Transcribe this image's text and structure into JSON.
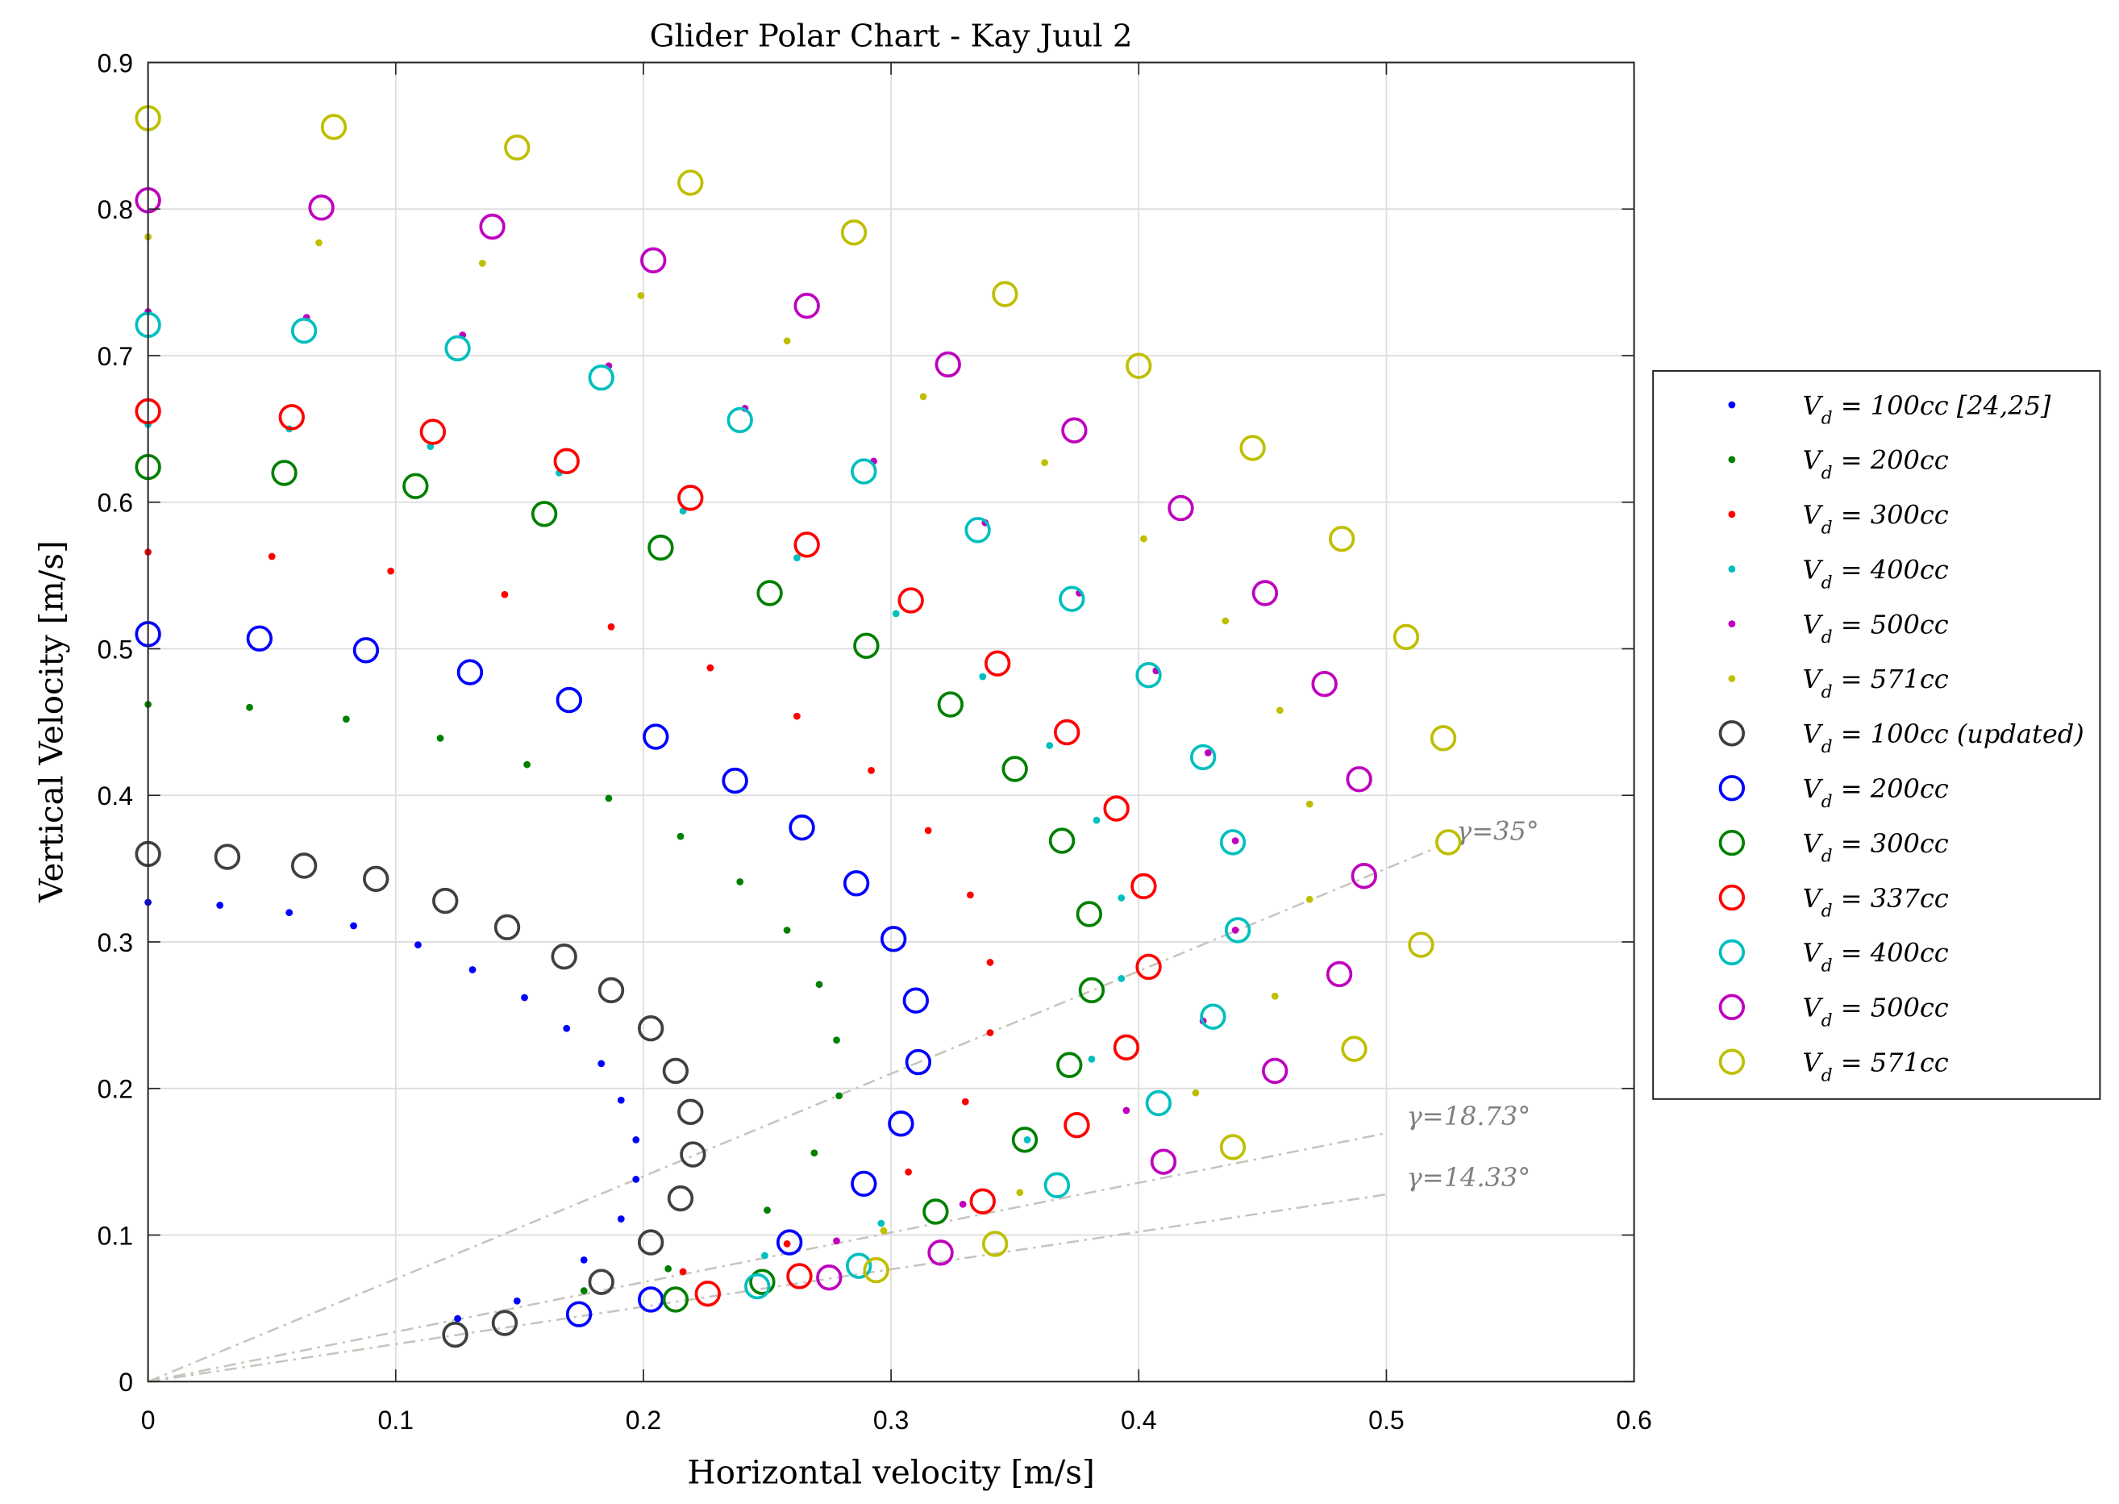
{
  "chart_data": {
    "type": "scatter",
    "title": "Glider Polar Chart - Kay Juul 2",
    "xlabel": "Horizontal velocity [m/s]",
    "ylabel": "Vertical Velocity [m/s]",
    "xlim": [
      0,
      0.6
    ],
    "ylim": [
      0,
      0.9
    ],
    "xticks": [
      "0",
      "0.1",
      "0.2",
      "0.3",
      "0.4",
      "0.5",
      "0.6"
    ],
    "yticks": [
      "0",
      "0.1",
      "0.2",
      "0.3",
      "0.4",
      "0.5",
      "0.6",
      "0.7",
      "0.8",
      "0.9"
    ],
    "grid": true,
    "legend_position": "outside-right",
    "glide_lines": [
      {
        "label": "γ=35°",
        "angle_deg": 35,
        "x_end": 0.52
      },
      {
        "label": "γ=18.73°",
        "angle_deg": 18.73,
        "x_end": 0.5
      },
      {
        "label": "γ=14.33°",
        "angle_deg": 14.33,
        "x_end": 0.5
      }
    ],
    "series": [
      {
        "name": "V_d = 100cc [24,25]",
        "sub": "d",
        "label_main": "V",
        "label_rest": " = 100cc [24,25]",
        "style": "dot",
        "color": "#0000ff",
        "x": [
          0,
          0.029,
          0.057,
          0.083,
          0.109,
          0.131,
          0.152,
          0.169,
          0.183,
          0.191,
          0.197,
          0.197,
          0.191,
          0.176,
          0.149,
          0.125
        ],
        "y": [
          0.327,
          0.325,
          0.32,
          0.311,
          0.298,
          0.281,
          0.262,
          0.241,
          0.217,
          0.192,
          0.165,
          0.138,
          0.111,
          0.083,
          0.055,
          0.043
        ]
      },
      {
        "name": "V_d = 200cc",
        "sub": "d",
        "label_main": "V",
        "label_rest": " = 200cc",
        "style": "dot",
        "color": "#008000",
        "x": [
          0,
          0.041,
          0.08,
          0.118,
          0.153,
          0.186,
          0.215,
          0.239,
          0.258,
          0.271,
          0.278,
          0.279,
          0.269,
          0.25,
          0.21,
          0.176
        ],
        "y": [
          0.462,
          0.46,
          0.452,
          0.439,
          0.421,
          0.398,
          0.372,
          0.341,
          0.308,
          0.271,
          0.233,
          0.195,
          0.156,
          0.117,
          0.077,
          0.062
        ]
      },
      {
        "name": "V_d = 300cc",
        "sub": "d",
        "label_main": "V",
        "label_rest": " = 300cc",
        "style": "dot",
        "color": "#ff0000",
        "x": [
          0,
          0.05,
          0.098,
          0.144,
          0.187,
          0.227,
          0.262,
          0.292,
          0.315,
          0.332,
          0.34,
          0.34,
          0.33,
          0.307,
          0.258,
          0.216
        ],
        "y": [
          0.566,
          0.563,
          0.553,
          0.537,
          0.515,
          0.487,
          0.454,
          0.417,
          0.376,
          0.332,
          0.286,
          0.238,
          0.191,
          0.143,
          0.094,
          0.075
        ]
      },
      {
        "name": "V_d = 400cc",
        "sub": "d",
        "label_main": "V",
        "label_rest": " = 400cc",
        "style": "dot",
        "color": "#00bfbf",
        "x": [
          0,
          0.057,
          0.114,
          0.166,
          0.216,
          0.262,
          0.302,
          0.337,
          0.364,
          0.383,
          0.393,
          0.393,
          0.381,
          0.355,
          0.296,
          0.249
        ],
        "y": [
          0.653,
          0.65,
          0.638,
          0.62,
          0.594,
          0.562,
          0.524,
          0.481,
          0.434,
          0.383,
          0.33,
          0.275,
          0.22,
          0.165,
          0.108,
          0.086
        ]
      },
      {
        "name": "V_d = 500cc",
        "sub": "d",
        "label_main": "V",
        "label_rest": " = 500cc",
        "style": "dot",
        "color": "#bf00bf",
        "x": [
          0,
          0.064,
          0.127,
          0.186,
          0.241,
          0.293,
          0.338,
          0.376,
          0.407,
          0.428,
          0.439,
          0.439,
          0.426,
          0.395,
          0.329,
          0.278
        ],
        "y": [
          0.73,
          0.726,
          0.714,
          0.693,
          0.664,
          0.628,
          0.586,
          0.538,
          0.485,
          0.429,
          0.369,
          0.308,
          0.246,
          0.185,
          0.121,
          0.096
        ]
      },
      {
        "name": "V_d = 571cc",
        "sub": "d",
        "label_main": "V",
        "label_rest": " = 571cc",
        "style": "dot",
        "color": "#bfbf00",
        "x": [
          0,
          0.069,
          0.135,
          0.199,
          0.258,
          0.313,
          0.362,
          0.402,
          0.435,
          0.457,
          0.469,
          0.469,
          0.455,
          0.423,
          0.352,
          0.297
        ],
        "y": [
          0.781,
          0.777,
          0.763,
          0.741,
          0.71,
          0.672,
          0.627,
          0.575,
          0.519,
          0.458,
          0.394,
          0.329,
          0.263,
          0.197,
          0.129,
          0.103
        ]
      },
      {
        "name": "V_d = 100cc (updated)",
        "sub": "d",
        "label_main": "V",
        "label_rest": " = 100cc (updated)",
        "style": "circle",
        "color": "#404040",
        "x": [
          0,
          0.032,
          0.063,
          0.092,
          0.12,
          0.145,
          0.168,
          0.187,
          0.203,
          0.213,
          0.219,
          0.22,
          0.215,
          0.203,
          0.183,
          0.144,
          0.124
        ],
        "y": [
          0.36,
          0.358,
          0.352,
          0.343,
          0.328,
          0.31,
          0.29,
          0.267,
          0.241,
          0.212,
          0.184,
          0.155,
          0.125,
          0.095,
          0.068,
          0.04,
          0.032
        ]
      },
      {
        "name": "V_d = 200cc",
        "sub": "d",
        "label_main": "V",
        "label_rest": " = 200cc",
        "style": "circle",
        "color": "#0000ff",
        "x": [
          0,
          0.045,
          0.088,
          0.13,
          0.17,
          0.205,
          0.237,
          0.264,
          0.286,
          0.301,
          0.31,
          0.311,
          0.304,
          0.289,
          0.259,
          0.203,
          0.174
        ],
        "y": [
          0.51,
          0.507,
          0.499,
          0.484,
          0.465,
          0.44,
          0.41,
          0.378,
          0.34,
          0.302,
          0.26,
          0.218,
          0.176,
          0.135,
          0.095,
          0.056,
          0.046
        ]
      },
      {
        "name": "V_d = 300cc",
        "sub": "d",
        "label_main": "V",
        "label_rest": " = 300cc",
        "style": "circle",
        "color": "#008000",
        "x": [
          0,
          0.055,
          0.108,
          0.16,
          0.207,
          0.251,
          0.29,
          0.324,
          0.35,
          0.369,
          0.38,
          0.381,
          0.372,
          0.354,
          0.318,
          0.248,
          0.213
        ],
        "y": [
          0.624,
          0.62,
          0.611,
          0.592,
          0.569,
          0.538,
          0.502,
          0.462,
          0.418,
          0.369,
          0.319,
          0.267,
          0.216,
          0.165,
          0.116,
          0.068,
          0.056
        ]
      },
      {
        "name": "V_d = 337cc",
        "sub": "d",
        "label_main": "V",
        "label_rest": " = 337cc",
        "style": "circle",
        "color": "#ff0000",
        "x": [
          0,
          0.058,
          0.115,
          0.169,
          0.219,
          0.266,
          0.308,
          0.343,
          0.371,
          0.391,
          0.402,
          0.404,
          0.395,
          0.375,
          0.337,
          0.263,
          0.226
        ],
        "y": [
          0.662,
          0.658,
          0.648,
          0.628,
          0.603,
          0.571,
          0.533,
          0.49,
          0.443,
          0.391,
          0.338,
          0.283,
          0.228,
          0.175,
          0.123,
          0.072,
          0.06
        ]
      },
      {
        "name": "V_d = 400cc",
        "sub": "d",
        "label_main": "V",
        "label_rest": " = 400cc",
        "style": "circle",
        "color": "#00bfbf",
        "x": [
          0,
          0.063,
          0.125,
          0.183,
          0.239,
          0.289,
          0.335,
          0.373,
          0.404,
          0.426,
          0.438,
          0.44,
          0.43,
          0.408,
          0.367,
          0.287,
          0.246
        ],
        "y": [
          0.721,
          0.717,
          0.705,
          0.685,
          0.656,
          0.621,
          0.581,
          0.534,
          0.482,
          0.426,
          0.368,
          0.308,
          0.249,
          0.19,
          0.134,
          0.079,
          0.065
        ]
      },
      {
        "name": "V_d = 500cc",
        "sub": "d",
        "label_main": "V",
        "label_rest": " = 500cc",
        "style": "circle",
        "color": "#bf00bf",
        "x": [
          0,
          0.07,
          0.139,
          0.204,
          0.266,
          0.323,
          0.374,
          0.417,
          0.451,
          0.475,
          0.489,
          0.491,
          0.481,
          0.455,
          0.41,
          0.32,
          0.275
        ],
        "y": [
          0.806,
          0.801,
          0.788,
          0.765,
          0.734,
          0.694,
          0.649,
          0.596,
          0.538,
          0.476,
          0.411,
          0.345,
          0.278,
          0.212,
          0.15,
          0.088,
          0.071
        ]
      },
      {
        "name": "V_d = 571cc",
        "sub": "d",
        "label_main": "V",
        "label_rest": " = 571cc",
        "style": "circle",
        "color": "#bfbf00",
        "x": [
          0,
          0.075,
          0.149,
          0.219,
          0.285,
          0.346,
          0.4,
          0.446,
          0.482,
          0.508,
          0.523,
          0.525,
          0.514,
          0.487,
          0.438,
          0.342,
          0.294
        ],
        "y": [
          0.862,
          0.856,
          0.842,
          0.818,
          0.784,
          0.742,
          0.693,
          0.637,
          0.575,
          0.508,
          0.439,
          0.368,
          0.298,
          0.227,
          0.16,
          0.094,
          0.076
        ]
      }
    ]
  }
}
